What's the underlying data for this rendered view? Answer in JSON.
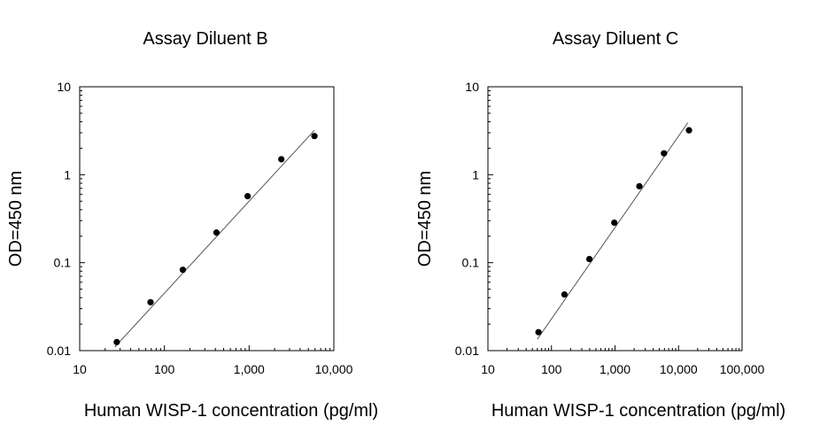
{
  "chart_data": [
    {
      "type": "scatter",
      "title": "Assay Diluent B",
      "xlabel": "Human WISP-1 concentration (pg/ml)",
      "ylabel": "OD=450 nm",
      "x_scale": "log",
      "y_scale": "log",
      "xlim": [
        10,
        10000
      ],
      "ylim": [
        0.01,
        10
      ],
      "x_ticks": [
        10,
        100,
        1000,
        10000
      ],
      "x_tick_labels": [
        "10",
        "100",
        "1,000",
        "10,000"
      ],
      "y_ticks": [
        0.01,
        0.1,
        1,
        10
      ],
      "y_tick_labels": [
        "0.01",
        "0.1",
        "1",
        "10"
      ],
      "grid": false,
      "points": [
        {
          "x": 27.4,
          "y": 0.0125
        },
        {
          "x": 68.6,
          "y": 0.0355
        },
        {
          "x": 165,
          "y": 0.083
        },
        {
          "x": 412,
          "y": 0.22
        },
        {
          "x": 960,
          "y": 0.57
        },
        {
          "x": 2400,
          "y": 1.5
        },
        {
          "x": 5900,
          "y": 2.75
        }
      ],
      "fit_line": {
        "x": [
          26,
          5900
        ],
        "y": [
          0.011,
          3.2
        ]
      },
      "colors": {
        "points": "#000000",
        "line": "#555555"
      }
    },
    {
      "type": "scatter",
      "title": "Assay Diluent C",
      "xlabel": "Human WISP-1 concentration (pg/ml)",
      "ylabel": "OD=450 nm",
      "x_scale": "log",
      "y_scale": "log",
      "xlim": [
        10,
        100000
      ],
      "ylim": [
        0.01,
        10
      ],
      "x_ticks": [
        10,
        100,
        1000,
        10000,
        100000
      ],
      "x_tick_labels": [
        "10",
        "100",
        "1,000",
        "10,000",
        "100,000"
      ],
      "y_ticks": [
        0.01,
        0.1,
        1,
        10
      ],
      "y_tick_labels": [
        "0.01",
        "0.1",
        "1",
        "10"
      ],
      "grid": false,
      "points": [
        {
          "x": 62.5,
          "y": 0.0162
        },
        {
          "x": 160,
          "y": 0.0435
        },
        {
          "x": 395,
          "y": 0.11
        },
        {
          "x": 975,
          "y": 0.285
        },
        {
          "x": 2420,
          "y": 0.74
        },
        {
          "x": 5900,
          "y": 1.75
        },
        {
          "x": 14600,
          "y": 3.2
        }
      ],
      "fit_line": {
        "x": [
          60,
          14000
        ],
        "y": [
          0.0135,
          3.9
        ]
      },
      "colors": {
        "points": "#000000",
        "line": "#555555"
      }
    }
  ]
}
